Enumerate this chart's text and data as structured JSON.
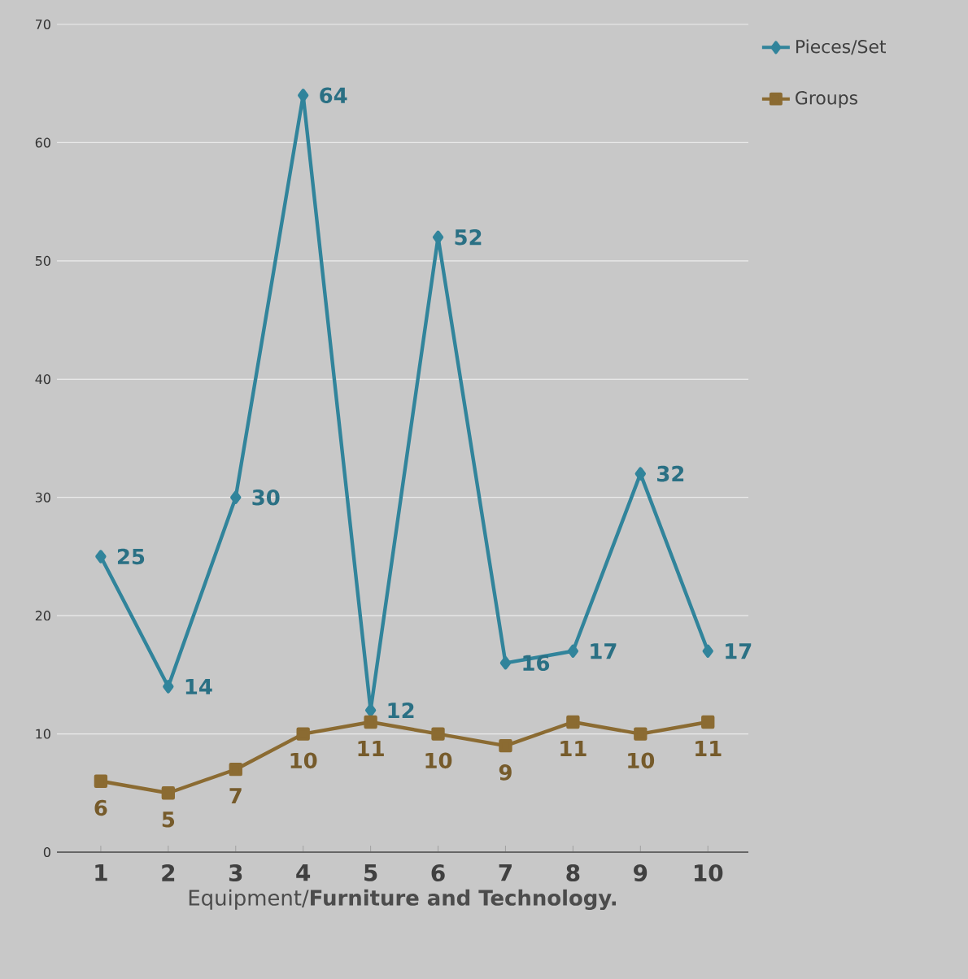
{
  "chart_data": {
    "type": "line",
    "xlabel": "Equipment/**Furniture and Technology.**",
    "categories": [
      "1",
      "2",
      "3",
      "4",
      "5",
      "6",
      "7",
      "8",
      "9",
      "10"
    ],
    "series": [
      {
        "name": "Pieces/Set",
        "color": "#31849b",
        "marker": "diamond",
        "values": [
          25,
          14,
          30,
          64,
          12,
          52,
          16,
          17,
          32,
          17
        ]
      },
      {
        "name": "Groups",
        "color": "#8b6b32",
        "marker": "square",
        "values": [
          6,
          5,
          7,
          10,
          11,
          10,
          9,
          11,
          10,
          11
        ]
      }
    ],
    "ylim": [
      0,
      70
    ],
    "yticks": [
      0,
      10,
      20,
      30,
      40,
      50,
      60,
      70
    ],
    "grid": "y",
    "legend": "top right",
    "data_labels": true
  }
}
